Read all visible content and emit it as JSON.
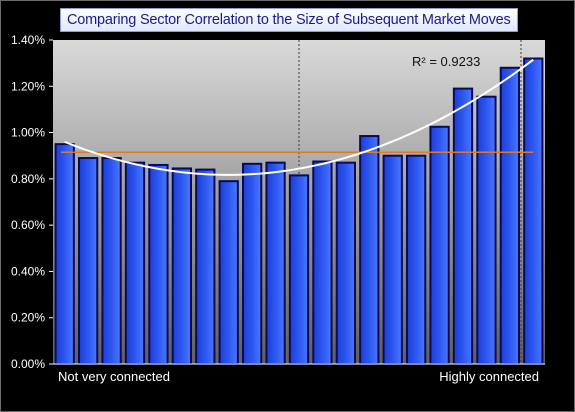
{
  "chart_data": {
    "type": "bar",
    "title": "Comparing Sector Correlation to the Size of Subsequent Market Moves",
    "xlabel": "",
    "ylabel": "",
    "ylim": [
      0,
      1.4
    ],
    "y_ticks": [
      "0.00%",
      "0.20%",
      "0.40%",
      "0.60%",
      "0.80%",
      "1.00%",
      "1.20%",
      "1.40%"
    ],
    "x_left_note": "Not very connected",
    "x_right_note": "Highly connected",
    "values": [
      0.95,
      0.89,
      0.89,
      0.87,
      0.86,
      0.845,
      0.84,
      0.79,
      0.865,
      0.87,
      0.815,
      0.875,
      0.87,
      0.985,
      0.9,
      0.9,
      1.025,
      1.19,
      1.155,
      1.28,
      1.32
    ],
    "average_line": 0.915,
    "trend": {
      "type": "polynomial",
      "r2_label": "R² = 0.9233"
    },
    "grid": true,
    "colors": {
      "bar": "#2b54f0",
      "bar_edge": "#0a0a5a",
      "avg_line": "#e07a20",
      "trend_line": "#ffffff",
      "plot_top": "#d9d9d9",
      "plot_bottom": "#606060"
    }
  }
}
